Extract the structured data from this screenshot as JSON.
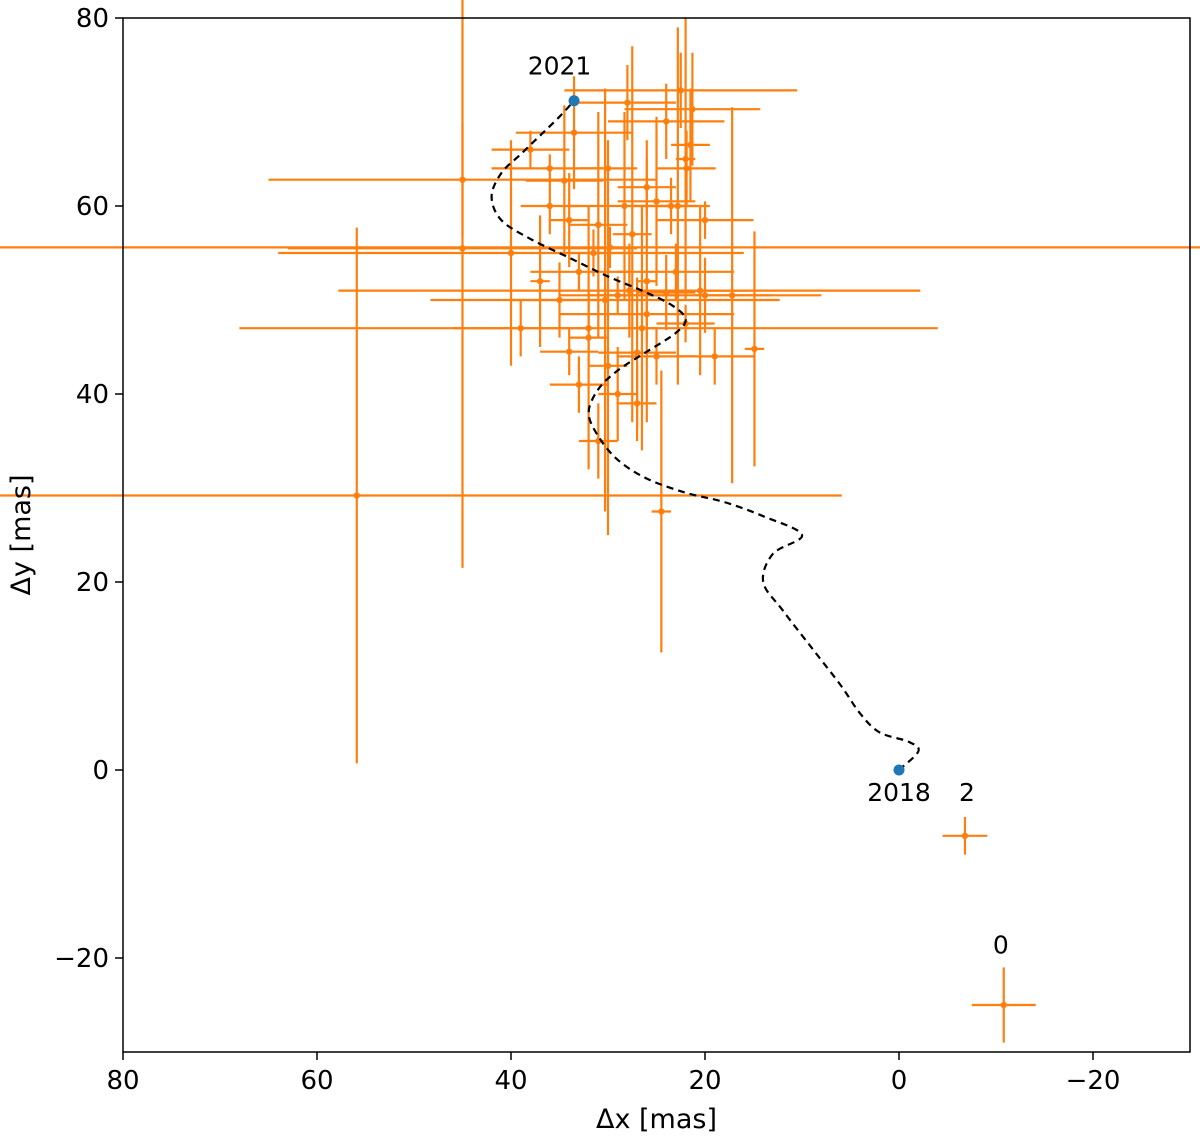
{
  "chart_data": {
    "type": "scatter",
    "title": "",
    "xlabel": "Δx [mas]",
    "ylabel": "Δy [mas]",
    "xlim": [
      80,
      -30
    ],
    "ylim": [
      -30,
      80
    ],
    "x_ticks": [
      80,
      60,
      40,
      20,
      0,
      -20
    ],
    "x_tick_labels": [
      "80",
      "60",
      "40",
      "20",
      "0",
      "−20"
    ],
    "y_ticks": [
      -20,
      0,
      20,
      40,
      60,
      80
    ],
    "y_tick_labels": [
      "−20",
      "0",
      "20",
      "40",
      "60",
      "80"
    ],
    "grid": false,
    "colors": {
      "measurements": "#ff7f0e",
      "endpoints": "#1f77b4",
      "trajectory": "#000000",
      "axes": "#000000"
    },
    "trajectory": {
      "style": "dashed",
      "points": [
        [
          0,
          0
        ],
        [
          2,
          2
        ],
        [
          1,
          3
        ],
        [
          -2,
          4
        ],
        [
          -4,
          6
        ],
        [
          -6,
          9
        ],
        [
          -9,
          13
        ],
        [
          -12,
          17
        ],
        [
          -14,
          20
        ],
        [
          -13,
          23
        ],
        [
          -10,
          25
        ],
        [
          -14,
          27
        ],
        [
          -18,
          28.5
        ],
        [
          -22,
          29.5
        ],
        [
          -26,
          31
        ],
        [
          -29,
          33
        ],
        [
          -31,
          35.5
        ],
        [
          -32,
          38
        ],
        [
          -31,
          40.5
        ],
        [
          -29,
          42.5
        ],
        [
          -26,
          44.5
        ],
        [
          -23,
          46.5
        ],
        [
          -22,
          48
        ],
        [
          -23.5,
          49.5
        ],
        [
          -26.5,
          51
        ],
        [
          -30,
          52.5
        ],
        [
          -34,
          54.5
        ],
        [
          -38,
          56.5
        ],
        [
          -41,
          58.5
        ],
        [
          -42,
          61
        ],
        [
          -41,
          63.5
        ],
        [
          -39,
          65.5
        ],
        [
          -37,
          67.5
        ],
        [
          -35,
          69.5
        ],
        [
          -33.5,
          71.2
        ]
      ],
      "points_x_in_plot_units": "negated"
    },
    "endpoints": [
      {
        "label": "2018",
        "x": 0,
        "y": 0
      },
      {
        "label": "2021",
        "x": 33.5,
        "y": 71.2
      }
    ],
    "series": [
      {
        "name": "measurements",
        "points": [
          {
            "x": 45,
            "y": 55.5,
            "xerr": 18,
            "yerr": 34
          },
          {
            "x": 45,
            "y": 62.8,
            "xerr": 20,
            "yerr": 6
          },
          {
            "x": 55.9,
            "y": 29.2,
            "xerr": 50,
            "yerr": 28.5
          },
          {
            "x": 40,
            "y": 55,
            "xerr": 24,
            "yerr": 12
          },
          {
            "x": 29.8,
            "y": 55.6,
            "xerr": 75,
            "yerr": 2.2
          },
          {
            "x": 32,
            "y": 47,
            "xerr": 36,
            "yerr": 4
          },
          {
            "x": 27.8,
            "y": 51,
            "xerr": 30,
            "yerr": 5
          },
          {
            "x": 20,
            "y": 50.5,
            "xerr": 12,
            "yerr": 4
          },
          {
            "x": 24.5,
            "y": 27.5,
            "xerr": 1,
            "yerr": 15
          },
          {
            "x": 30.3,
            "y": 50,
            "xerr": 18,
            "yerr": 22.5
          },
          {
            "x": 28.3,
            "y": 60,
            "xerr": 6,
            "yerr": 10
          },
          {
            "x": 33.5,
            "y": 67.8,
            "xerr": 6,
            "yerr": 6
          },
          {
            "x": 22.5,
            "y": 72.3,
            "xerr": 12,
            "yerr": 4
          },
          {
            "x": 21.3,
            "y": 70.3,
            "xerr": 7,
            "yerr": 6
          },
          {
            "x": 17.2,
            "y": 50.5,
            "xerr": 4,
            "yerr": 20
          },
          {
            "x": 14.9,
            "y": 44.8,
            "xerr": 1,
            "yerr": 12.5
          },
          {
            "x": 34.5,
            "y": 62.7,
            "xerr": 4,
            "yerr": 8
          },
          {
            "x": 27,
            "y": 44.4,
            "xerr": 4,
            "yerr": 8
          },
          {
            "x": 29,
            "y": 40,
            "xerr": 2,
            "yerr": 5
          },
          {
            "x": 21.9,
            "y": 64,
            "xerr": 3,
            "yerr": 4
          }
        ]
      },
      {
        "name": "2",
        "points": [
          {
            "x": -6.8,
            "y": -7,
            "xerr": 2.3,
            "yerr": 2
          }
        ]
      },
      {
        "name": "0",
        "points": [
          {
            "x": -10.8,
            "y": -25,
            "xerr": 3.3,
            "yerr": 4
          }
        ]
      }
    ],
    "background_errorbars": [
      [
        37,
        52,
        1,
        7
      ],
      [
        36,
        64,
        6,
        1.5
      ],
      [
        32,
        46,
        2,
        14
      ],
      [
        31,
        58,
        3,
        12
      ],
      [
        30,
        43,
        2,
        18
      ],
      [
        27.5,
        57,
        2,
        20
      ],
      [
        26.5,
        47,
        1.5,
        13
      ],
      [
        26,
        52,
        1,
        15
      ],
      [
        25,
        60.5,
        4,
        9
      ],
      [
        22.8,
        60,
        2,
        19
      ],
      [
        22,
        65,
        1,
        15
      ],
      [
        21.5,
        66.5,
        2,
        6
      ],
      [
        20.5,
        51,
        5,
        9
      ],
      [
        19,
        44,
        4,
        3
      ],
      [
        26,
        48.5,
        9,
        3
      ],
      [
        23,
        53,
        6,
        3
      ],
      [
        34,
        58.5,
        2,
        5
      ],
      [
        35,
        50,
        5,
        4
      ],
      [
        28,
        71,
        5,
        4
      ],
      [
        24,
        69,
        6,
        4
      ],
      [
        38,
        66,
        4,
        2
      ],
      [
        30,
        64,
        3,
        3
      ],
      [
        33,
        41,
        3,
        3
      ],
      [
        25,
        44,
        4,
        3
      ],
      [
        24,
        50.8,
        3,
        4
      ],
      [
        29,
        50.5,
        6,
        2
      ],
      [
        31.5,
        55,
        4,
        2.5
      ],
      [
        36,
        60,
        3,
        3
      ],
      [
        23.5,
        60,
        4,
        3
      ],
      [
        20,
        58.5,
        5,
        2
      ],
      [
        33,
        53,
        5,
        2
      ],
      [
        22,
        47.5,
        3,
        2
      ],
      [
        34,
        44.5,
        3,
        2.5
      ],
      [
        26,
        62,
        3,
        3
      ],
      [
        31,
        35,
        2,
        4
      ],
      [
        39,
        47,
        7,
        3
      ],
      [
        27,
        39,
        2,
        4
      ]
    ],
    "annotations": [
      {
        "text": "2021",
        "x": 35,
        "y": 74
      },
      {
        "text": "2018",
        "x": 0,
        "y": -3.3
      },
      {
        "text": "2",
        "x": -7,
        "y": -3.3
      },
      {
        "text": "0",
        "x": -10.5,
        "y": -19.5
      }
    ]
  }
}
